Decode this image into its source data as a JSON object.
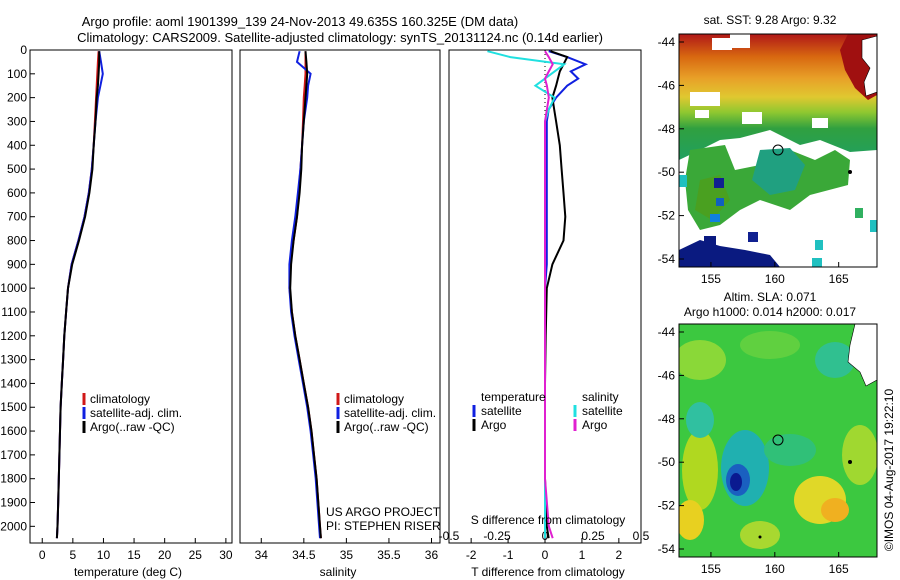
{
  "header": {
    "title_line1": "Argo profile: aoml 1901399_139 24-Nov-2013 49.635S 160.325E (DM data)",
    "title_line2": "Climatology: CARS2009. Satellite-adjusted climatology: synTS_20131124.nc (0.14d earlier)"
  },
  "credits": {
    "project": "US ARGO PROJECT",
    "pi": "PI: STEPHEN RISER",
    "imos": "©IMOS 04-Aug-2017 19:22:10"
  },
  "colors": {
    "climatology": "#d01818",
    "satellite": "#1020e0",
    "argo": "#000000",
    "temp_diff_sat": "#1020e0",
    "temp_diff_argo": "#000000",
    "sal_diff_sat": "#20e0e0",
    "sal_diff_argo": "#e020d0"
  },
  "map_sst": {
    "title": "sat. SST: 9.28 Argo: 9.32",
    "yticks": [
      "-44",
      "-46",
      "-48",
      "-50",
      "-52",
      "-54"
    ],
    "xticks": [
      "155",
      "160",
      "165"
    ]
  },
  "map_sla": {
    "title_line1": "Altim. SLA: 0.071",
    "title_line2": "Argo h1000: 0.014 h2000: 0.017",
    "yticks": [
      "-44",
      "-46",
      "-48",
      "-50",
      "-52",
      "-54"
    ],
    "xticks": [
      "155",
      "160",
      "165"
    ]
  },
  "chart_data": [
    {
      "type": "line",
      "id": "temperature",
      "xlabel": "temperature (deg C)",
      "xlim": [
        -2,
        31
      ],
      "ylim": [
        2070,
        0
      ],
      "xticks": [
        "0",
        "5",
        "10",
        "15",
        "20",
        "25",
        "30"
      ],
      "yticks": [
        "0",
        "100",
        "200",
        "300",
        "400",
        "500",
        "600",
        "700",
        "800",
        "900",
        "1000",
        "1100",
        "1200",
        "1300",
        "1400",
        "1500",
        "1600",
        "1700",
        "1800",
        "1900",
        "2000"
      ],
      "legend": [
        "climatology",
        "satellite-adj. clim.",
        "Argo(..raw -QC)"
      ],
      "depth": [
        5,
        50,
        100,
        150,
        200,
        300,
        400,
        500,
        600,
        700,
        800,
        900,
        1000,
        1100,
        1200,
        1300,
        1400,
        1500,
        1600,
        1700,
        1800,
        1900,
        2000,
        2050
      ],
      "series": [
        {
          "name": "climatology",
          "values": [
            9.2,
            9.1,
            9.0,
            8.9,
            8.8,
            8.6,
            8.4,
            8.1,
            7.6,
            6.9,
            5.9,
            4.8,
            4.2,
            3.9,
            3.6,
            3.4,
            3.2,
            3.0,
            2.9,
            2.8,
            2.7,
            2.6,
            2.5,
            2.4
          ]
        },
        {
          "name": "satellite-adj. clim.",
          "values": [
            9.3,
            9.6,
            9.9,
            9.5,
            9.1,
            8.7,
            8.4,
            8.1,
            7.6,
            6.9,
            5.9,
            4.8,
            4.2,
            3.9,
            3.6,
            3.4,
            3.2,
            3.0,
            2.9,
            2.8,
            2.7,
            2.6,
            2.5,
            2.4
          ]
        },
        {
          "name": "Argo(..raw -QC)",
          "values": [
            9.3,
            9.3,
            9.2,
            9.1,
            8.9,
            8.7,
            8.4,
            8.2,
            7.7,
            7.0,
            6.0,
            4.9,
            4.2,
            3.9,
            3.6,
            3.4,
            3.2,
            3.0,
            2.9,
            2.8,
            2.7,
            2.6,
            2.5,
            2.4
          ]
        }
      ]
    },
    {
      "type": "line",
      "id": "salinity",
      "xlabel": "salinity",
      "xlim": [
        33.75,
        36.1
      ],
      "ylim": [
        2070,
        0
      ],
      "xticks": [
        "34",
        "34.5",
        "35",
        "35.5",
        "36"
      ],
      "legend": [
        "climatology",
        "satellite-adj. clim.",
        "Argo(..raw -QC)"
      ],
      "depth": [
        5,
        50,
        100,
        150,
        200,
        300,
        400,
        500,
        600,
        700,
        800,
        900,
        1000,
        1100,
        1200,
        1300,
        1400,
        1500,
        1600,
        1700,
        1800,
        1900,
        2000,
        2050
      ],
      "series": [
        {
          "name": "climatology",
          "values": [
            34.52,
            34.52,
            34.52,
            34.51,
            34.5,
            34.49,
            34.48,
            34.46,
            34.44,
            34.42,
            34.38,
            34.34,
            34.33,
            34.36,
            34.4,
            34.45,
            34.5,
            34.55,
            34.59,
            34.62,
            34.65,
            34.67,
            34.69,
            34.7
          ]
        },
        {
          "name": "satellite-adj. clim.",
          "values": [
            34.45,
            34.42,
            34.58,
            34.55,
            34.54,
            34.5,
            34.48,
            34.46,
            34.43,
            34.4,
            34.36,
            34.33,
            34.33,
            34.35,
            34.39,
            34.44,
            34.49,
            34.54,
            34.58,
            34.61,
            34.64,
            34.66,
            34.68,
            34.69
          ]
        },
        {
          "name": "Argo(..raw -QC)",
          "values": [
            34.52,
            34.53,
            34.54,
            34.53,
            34.52,
            34.5,
            34.48,
            34.47,
            34.45,
            34.42,
            34.38,
            34.35,
            34.34,
            34.36,
            34.4,
            34.45,
            34.5,
            34.55,
            34.59,
            34.62,
            34.65,
            34.67,
            34.69,
            34.7
          ]
        }
      ]
    },
    {
      "type": "line",
      "id": "difference",
      "xlabel": "T difference from climatology",
      "xlabel_top": "S difference from climatology",
      "xlim": [
        -2.6,
        2.6
      ],
      "ylim": [
        2070,
        0
      ],
      "xticks": [
        "-2",
        "-1",
        "0",
        "1",
        "2"
      ],
      "xticks_salinity": [
        "-0.5",
        "-0.25",
        "0",
        "0.25",
        "0.5"
      ],
      "legend_temperature_title": "temperature",
      "legend_salinity_title": "salinity",
      "legend_temperature": [
        "satellite",
        "Argo"
      ],
      "legend_salinity": [
        "satellite",
        "Argo"
      ],
      "depth": [
        5,
        30,
        60,
        90,
        120,
        150,
        200,
        250,
        300,
        400,
        500,
        600,
        700,
        800,
        900,
        1000,
        1200,
        1400,
        1600,
        1800,
        2000,
        2050
      ],
      "series": [
        {
          "name": "temperature satellite",
          "values": [
            0.1,
            0.6,
            1.1,
            0.7,
            0.9,
            0.6,
            0.3,
            0.1,
            0.05,
            0.05,
            0.05,
            0.05,
            0.05,
            0.05,
            0.05,
            0.0,
            0.0,
            0.0,
            0.0,
            0.0,
            0.0,
            0.0
          ]
        },
        {
          "name": "temperature Argo",
          "values": [
            0.15,
            0.6,
            0.5,
            0.4,
            0.35,
            0.3,
            0.2,
            0.25,
            0.3,
            0.4,
            0.45,
            0.5,
            0.55,
            0.5,
            0.2,
            0.05,
            0.02,
            0.0,
            0.0,
            0.0,
            0.05,
            0.1
          ]
        },
        {
          "name": "salinity satellite",
          "values": [
            -0.3,
            -0.18,
            0.1,
            0.05,
            0.0,
            -0.05,
            0.05,
            0.02,
            0.0,
            0.0,
            0.0,
            0.0,
            0.0,
            0.0,
            0.0,
            0.0,
            0.0,
            0.0,
            0.0,
            0.0,
            0.0,
            0.0
          ]
        },
        {
          "name": "salinity Argo",
          "values": [
            0.0,
            0.02,
            0.04,
            0.02,
            0.0,
            0.01,
            0.02,
            0.01,
            0.0,
            0.0,
            0.0,
            0.0,
            0.0,
            0.0,
            0.0,
            0.0,
            0.0,
            0.0,
            0.0,
            0.0,
            0.02,
            0.04
          ]
        }
      ]
    }
  ]
}
